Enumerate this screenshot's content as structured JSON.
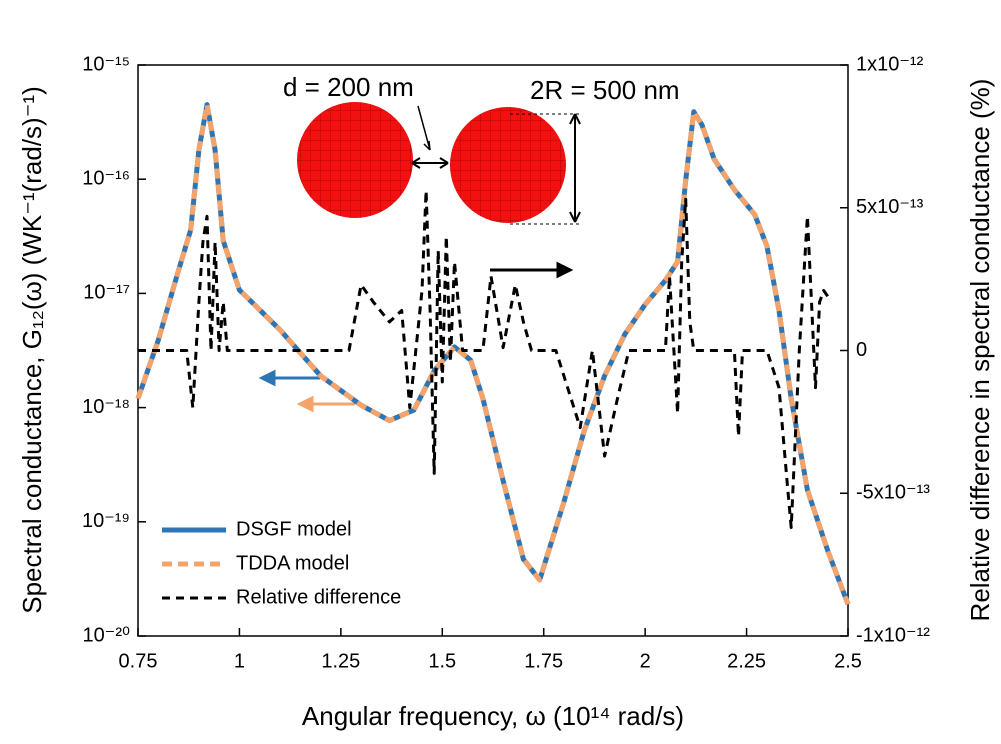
{
  "chart_data": {
    "type": "line",
    "xlabel": "Angular frequency, ω (10¹⁴ rad/s)",
    "ylabel": "Spectral conductance, G₁₂(ω) (WK⁻¹(rad/s)⁻¹)",
    "y2label": "Relative difference in spectral conductance (%)",
    "annotations": [
      "d = 200 nm",
      "2R = 500 nm"
    ],
    "xlim": [
      0.75,
      2.5
    ],
    "xticks": [
      0.75,
      1,
      1.25,
      1.5,
      1.75,
      2,
      2.25,
      2.5
    ],
    "ylim": [
      1e-20,
      1e-15
    ],
    "ylog": true,
    "yticks": [
      {
        "value": 1e-20,
        "label": "10⁻²⁰"
      },
      {
        "value": 1e-19,
        "label": "10⁻¹⁹"
      },
      {
        "value": 1e-18,
        "label": "10⁻¹⁸"
      },
      {
        "value": 1e-17,
        "label": "10⁻¹⁷"
      },
      {
        "value": 1e-16,
        "label": "10⁻¹⁶"
      },
      {
        "value": 1e-15,
        "label": "10⁻¹⁵"
      }
    ],
    "y2lim": [
      -1e-12,
      1e-12
    ],
    "y2ticks": [
      {
        "value": -1e-12,
        "label": "-1x10⁻¹²"
      },
      {
        "value": -5e-13,
        "label": "-5x10⁻¹³"
      },
      0,
      {
        "value": 5e-13,
        "label": "5x10⁻¹³"
      },
      {
        "value": 1e-12,
        "label": "1x10⁻¹²"
      }
    ],
    "series": [
      {
        "name": "DSGF model",
        "color": "#2e75b6",
        "dash": false,
        "x": [
          0.75,
          0.8,
          0.85,
          0.88,
          0.9,
          0.92,
          0.94,
          0.96,
          1.0,
          1.1,
          1.2,
          1.3,
          1.37,
          1.43,
          1.48,
          1.53,
          1.57,
          1.6,
          1.65,
          1.7,
          1.74,
          1.8,
          1.85,
          1.9,
          1.95,
          2.0,
          2.05,
          2.08,
          2.1,
          2.12,
          2.14,
          2.17,
          2.22,
          2.27,
          2.3,
          2.33,
          2.36,
          2.4,
          2.45,
          2.5
        ],
        "values": [
          1.2e-18,
          3.9e-18,
          1.6e-17,
          3.6e-17,
          1.8e-16,
          4.5e-16,
          1.8e-16,
          2.9e-17,
          1.07e-17,
          4.8e-18,
          1.9e-18,
          1.05e-18,
          7.7e-19,
          9.5e-19,
          2.1e-18,
          3.4e-18,
          2.6e-18,
          1.2e-18,
          2.3e-19,
          4.7e-20,
          3.1e-20,
          1.5e-19,
          6.3e-19,
          1.9e-18,
          4.4e-18,
          8e-18,
          1.3e-17,
          1.9e-17,
          9.8e-17,
          3.9e-16,
          3e-16,
          1.5e-16,
          8.1e-17,
          4.9e-17,
          2.6e-17,
          7.1e-18,
          1.2e-18,
          1.9e-19,
          5.6e-20,
          1.9e-20
        ]
      },
      {
        "name": "TDDA model",
        "color": "#f4a46a",
        "dash": true,
        "x": [
          0.75,
          0.8,
          0.85,
          0.88,
          0.9,
          0.92,
          0.94,
          0.96,
          1.0,
          1.1,
          1.2,
          1.3,
          1.37,
          1.43,
          1.48,
          1.53,
          1.57,
          1.6,
          1.65,
          1.7,
          1.74,
          1.8,
          1.85,
          1.9,
          1.95,
          2.0,
          2.05,
          2.08,
          2.1,
          2.12,
          2.14,
          2.17,
          2.22,
          2.27,
          2.3,
          2.33,
          2.36,
          2.4,
          2.45,
          2.5
        ],
        "values": [
          1.2e-18,
          3.9e-18,
          1.6e-17,
          3.6e-17,
          1.8e-16,
          4.5e-16,
          1.8e-16,
          2.9e-17,
          1.07e-17,
          4.8e-18,
          1.9e-18,
          1.05e-18,
          7.7e-19,
          9.5e-19,
          2.1e-18,
          3.4e-18,
          2.6e-18,
          1.2e-18,
          2.3e-19,
          4.7e-20,
          3.1e-20,
          1.5e-19,
          6.3e-19,
          1.9e-18,
          4.4e-18,
          8e-18,
          1.3e-17,
          1.9e-17,
          9.8e-17,
          3.9e-16,
          3e-16,
          1.5e-16,
          8.1e-17,
          4.9e-17,
          2.6e-17,
          7.1e-18,
          1.2e-18,
          1.9e-19,
          5.6e-20,
          1.9e-20
        ]
      },
      {
        "name": "Relative difference",
        "color": "#000000",
        "dash": true,
        "axis": "y2",
        "x": [
          0.75,
          0.87,
          0.885,
          0.9,
          0.91,
          0.92,
          0.93,
          0.94,
          0.95,
          0.96,
          0.97,
          1.27,
          1.3,
          1.33,
          1.37,
          1.4,
          1.42,
          1.44,
          1.45,
          1.46,
          1.47,
          1.48,
          1.49,
          1.5,
          1.51,
          1.52,
          1.53,
          1.55,
          1.6,
          1.62,
          1.65,
          1.68,
          1.7,
          1.72,
          1.78,
          1.84,
          1.87,
          1.9,
          1.93,
          1.96,
          2.05,
          2.06,
          2.08,
          2.09,
          2.1,
          2.11,
          2.12,
          2.22,
          2.23,
          2.24,
          2.3,
          2.33,
          2.35,
          2.36,
          2.38,
          2.4,
          2.41,
          2.42,
          2.43,
          2.44,
          2.45
        ],
        "values": [
          0,
          0,
          -2e-13,
          1.7e-13,
          3.8e-13,
          4.7e-13,
          0,
          3.8e-13,
          0,
          1.7e-13,
          0,
          0,
          2.3e-13,
          1.7e-13,
          1e-13,
          1.4e-13,
          -2e-13,
          7e-14,
          2.1e-13,
          5.6e-13,
          1.4e-13,
          -4.3e-13,
          3.5e-13,
          -1.1e-13,
          4e-13,
          -4e-14,
          3.1e-13,
          0,
          0,
          2.6e-13,
          1e-14,
          2.3e-13,
          1e-13,
          0,
          0,
          -2.7e-13,
          0,
          -3.7e-13,
          -1.8e-13,
          0,
          0,
          2.6e-13,
          -2.2e-13,
          3.1e-13,
          5.3e-13,
          1e-13,
          0,
          0,
          -3e-13,
          0,
          0,
          -1.3e-13,
          -4.6e-13,
          -6.2e-13,
          0,
          4.7e-13,
          1.7e-13,
          -1.3e-13,
          1.7e-13,
          2.1e-13,
          1.9e-13
        ]
      }
    ]
  }
}
